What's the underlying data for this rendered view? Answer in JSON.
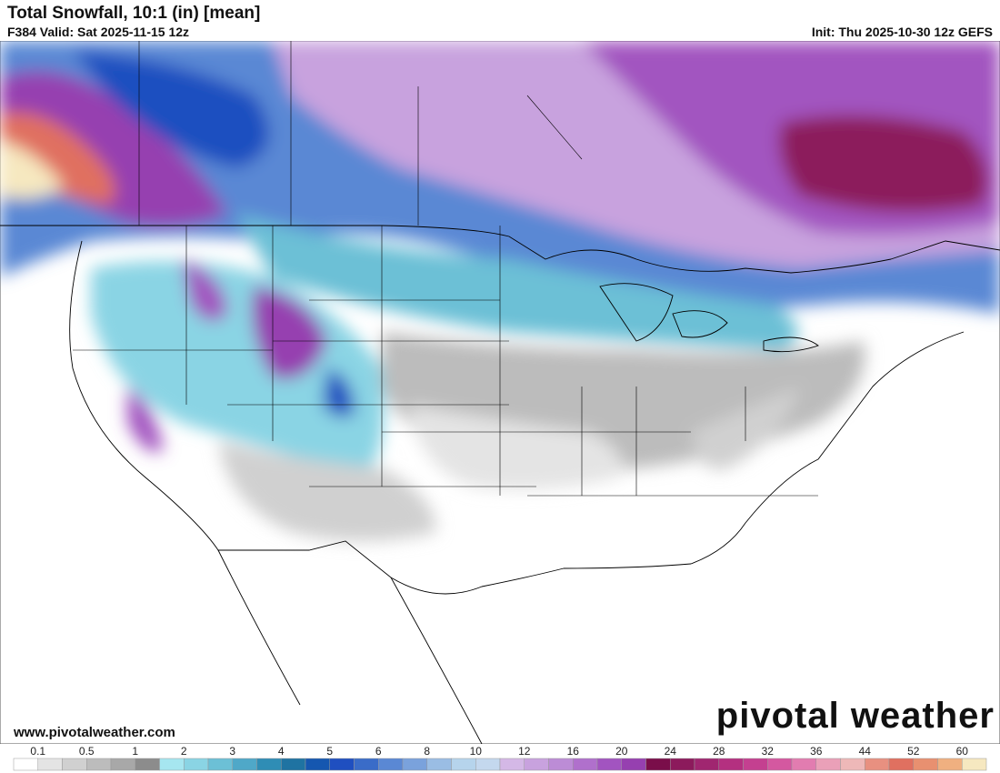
{
  "header": {
    "title": "Total Snowfall, 10:1 (in) [mean]",
    "valid": "F384 Valid: Sat 2025-11-15 12z",
    "init": "Init: Thu 2025-10-30 12z GEFS"
  },
  "footer": {
    "website": "www.pivotalweather.com",
    "logo": "pivotal weather"
  },
  "colorbar": {
    "labels": [
      0.1,
      0.5,
      1,
      2,
      3,
      4,
      5,
      6,
      8,
      10,
      12,
      16,
      20,
      24,
      28,
      32,
      36,
      44,
      52,
      60
    ],
    "colors": [
      "#ffffff",
      "#e4e4e4",
      "#d0d0d0",
      "#bcbcbc",
      "#a8a8a8",
      "#8c8c8c",
      "#a6e6f0",
      "#8ad4e4",
      "#6cc0d6",
      "#4fa8c8",
      "#2f8db5",
      "#1f73a2",
      "#1557b0",
      "#1f4fc0",
      "#3a6cc8",
      "#5a88d4",
      "#7aa2dc",
      "#9abde4",
      "#b6d4ec",
      "#c4d8ee",
      "#d4b8e6",
      "#c8a2de",
      "#bc8cd6",
      "#b070cc",
      "#a254c0",
      "#9640b0",
      "#7a0e4a",
      "#8c1a5c",
      "#a02670",
      "#b43080",
      "#c44090",
      "#d458a0",
      "#e27cb0",
      "#eaa0b8",
      "#eeb8b8",
      "#e89080",
      "#e07060",
      "#e89070",
      "#f0b080",
      "#f6e8c0"
    ]
  }
}
